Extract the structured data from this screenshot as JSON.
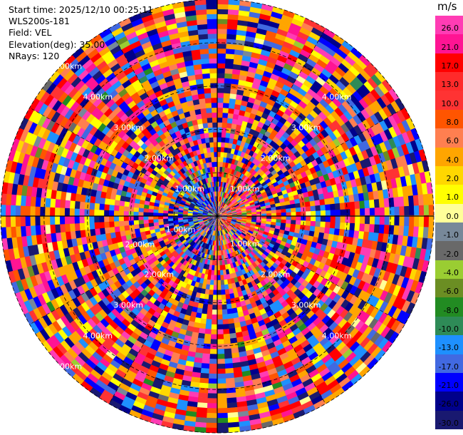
{
  "info": {
    "start_time": "Start time: 2025/12/10 00:25:11",
    "instrument": "WLS200s-181",
    "field": "Field: VEL",
    "elevation": "Elevation(deg): 35.00",
    "nrays": "NRays: 120"
  },
  "colorbar": {
    "unit": "m/s",
    "labels": [
      "26.0",
      "21.0",
      "17.0",
      "13.0",
      "10.0",
      "8.0",
      "6.0",
      "4.0",
      "2.0",
      "1.0",
      "0.0",
      "-1.0",
      "-2.0",
      "-4.0",
      "-6.0",
      "-8.0",
      "-10.0",
      "-13.0",
      "-17.0",
      "-21.0",
      "-26.0",
      "-30.0"
    ],
    "colors": [
      "#ff3cb4",
      "#ff1493",
      "#ff0000",
      "#ff2a2a",
      "#ff3333",
      "#ff5500",
      "#ff7f50",
      "#ffa500",
      "#ffd700",
      "#ffff00",
      "#ffff99",
      "#778899",
      "#696969",
      "#9acd32",
      "#6b8e23",
      "#228b22",
      "#2e8b57",
      "#1e90ff",
      "#4169e1",
      "#0000ff",
      "#00008b",
      "#191970"
    ]
  },
  "chart_data": {
    "type": "heatmap",
    "title": "",
    "projection": "polar (PPI)",
    "field": "VEL",
    "units": "m/s",
    "n_rays": 120,
    "elevation_deg": 35.0,
    "range_max_km": 5.0,
    "colorbar_range": [
      -30.0,
      26.0
    ],
    "range_ring_labels": [
      "1.00km",
      "2.00km",
      "3.00km",
      "4.00km",
      "5.00km"
    ],
    "ring_label_sets": [
      [
        "5.00km",
        "4.00km",
        "3.00km",
        "2.00km",
        "1.00km"
      ],
      [
        "4.00km",
        "3.00km",
        "2.00km",
        "1.00km"
      ],
      [
        "1.00km",
        "2.00km"
      ],
      [
        "2.00km",
        "3.00km",
        "4.00km",
        "5.00km"
      ],
      [
        "1.00km",
        "2.00km",
        "3.00km",
        "4.00km"
      ]
    ],
    "grid": true,
    "notes": "Radial velocity field, noisy values dominated by strong positive (pink/red) and negative (blue/navy) velocities."
  }
}
